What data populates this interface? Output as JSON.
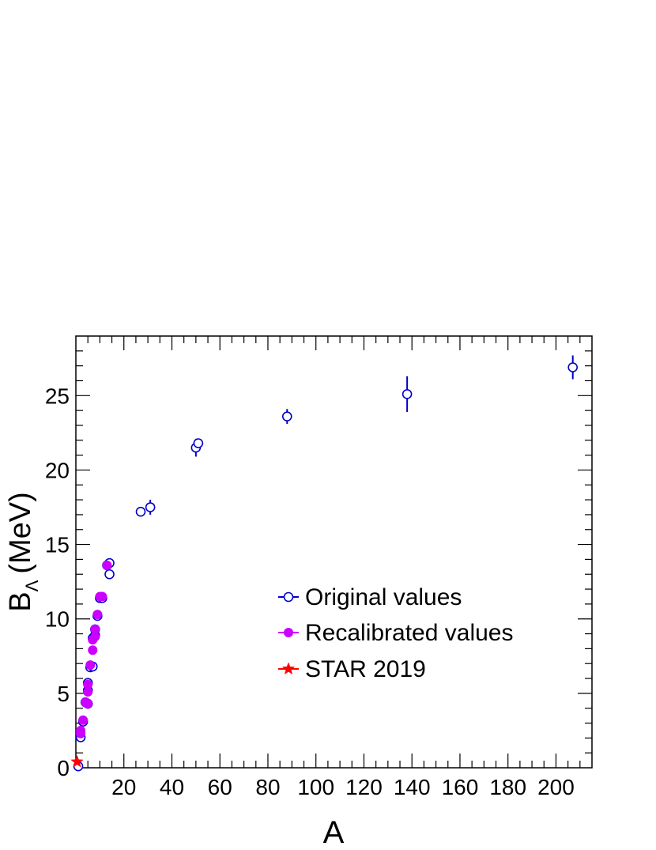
{
  "chart_data": {
    "type": "scatter",
    "xlabel": "A",
    "ylabel_main": "B",
    "ylabel_sub": "Λ",
    "ylabel_unit": "(MeV)",
    "xlim": [
      0,
      215
    ],
    "ylim": [
      0,
      29
    ],
    "x_ticks": [
      20,
      40,
      60,
      80,
      100,
      120,
      140,
      160,
      180,
      200
    ],
    "y_ticks": [
      0,
      5,
      10,
      15,
      20,
      25
    ],
    "grid": false,
    "legend_position": "center-right",
    "series": [
      {
        "name": "Original values",
        "marker": "open-circle",
        "color": "#0000cc",
        "points": [
          {
            "x": 1,
            "y": 0.1,
            "err": 0.1
          },
          {
            "x": 2,
            "y": 2.05,
            "err": 0.05
          },
          {
            "x": 3,
            "y": 3.1,
            "err": 0.05
          },
          {
            "x": 4,
            "y": 4.4,
            "err": 0.1
          },
          {
            "x": 5,
            "y": 4.3,
            "err": 0.1
          },
          {
            "x": 5,
            "y": 5.2,
            "err": 0.1
          },
          {
            "x": 5,
            "y": 5.7,
            "err": 0.1
          },
          {
            "x": 6,
            "y": 6.75,
            "err": 0.1
          },
          {
            "x": 7,
            "y": 6.8,
            "err": 0.1
          },
          {
            "x": 7,
            "y": 8.7,
            "err": 0.1
          },
          {
            "x": 8,
            "y": 8.9,
            "err": 0.1
          },
          {
            "x": 8,
            "y": 9.3,
            "err": 0.1
          },
          {
            "x": 9,
            "y": 10.2,
            "err": 0.1
          },
          {
            "x": 10,
            "y": 11.4,
            "err": 0.1
          },
          {
            "x": 11,
            "y": 11.4,
            "err": 0.1
          },
          {
            "x": 13,
            "y": 13.6,
            "err": 0.1
          },
          {
            "x": 14,
            "y": 13.0,
            "err": 0.1
          },
          {
            "x": 14,
            "y": 13.75,
            "err": 0.1
          },
          {
            "x": 27,
            "y": 17.2,
            "err": 0.1
          },
          {
            "x": 31,
            "y": 17.5,
            "err": 0.5
          },
          {
            "x": 50,
            "y": 21.5,
            "err": 0.6
          },
          {
            "x": 51,
            "y": 21.8,
            "err": 0.2
          },
          {
            "x": 88,
            "y": 23.6,
            "err": 0.5
          },
          {
            "x": 138,
            "y": 25.1,
            "err": 1.2
          },
          {
            "x": 207,
            "y": 26.9,
            "err": 0.8
          }
        ]
      },
      {
        "name": "Recalibrated values",
        "marker": "filled-circle",
        "color": "#cc00ff",
        "points": [
          {
            "x": 2,
            "y": 2.3
          },
          {
            "x": 2,
            "y": 2.5
          },
          {
            "x": 3,
            "y": 3.2
          },
          {
            "x": 4,
            "y": 4.4
          },
          {
            "x": 5,
            "y": 4.3
          },
          {
            "x": 5,
            "y": 5.1
          },
          {
            "x": 5,
            "y": 5.6
          },
          {
            "x": 6,
            "y": 6.9
          },
          {
            "x": 7,
            "y": 7.9
          },
          {
            "x": 7,
            "y": 8.6
          },
          {
            "x": 8,
            "y": 8.8
          },
          {
            "x": 8,
            "y": 9.3
          },
          {
            "x": 9,
            "y": 10.3
          },
          {
            "x": 10,
            "y": 11.5
          },
          {
            "x": 11,
            "y": 11.5
          },
          {
            "x": 13,
            "y": 13.6
          }
        ]
      },
      {
        "name": "STAR 2019",
        "marker": "star",
        "color": "#ff0000",
        "points": [
          {
            "x": 0.5,
            "y": 0.4
          }
        ]
      }
    ]
  }
}
